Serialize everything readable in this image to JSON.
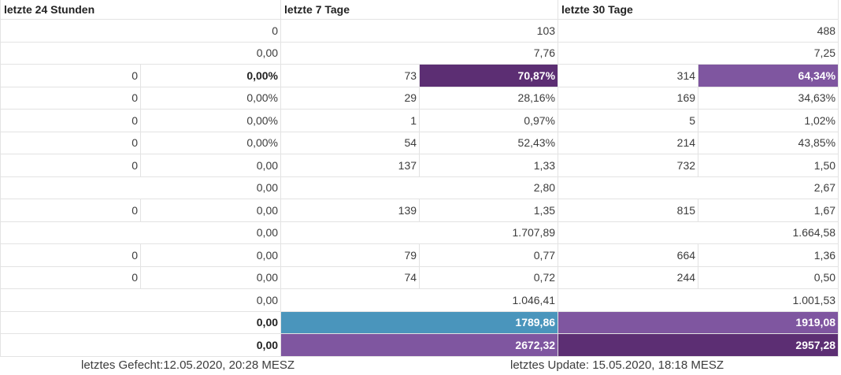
{
  "header": {
    "h24": "letzte 24 Stunden",
    "h7": "letzte 7 Tage",
    "h30": "letzte 30 Tage"
  },
  "rows": {
    "r1": {
      "d1": "0",
      "d7": "103",
      "d30": "488"
    },
    "r2": {
      "d1": "0,00",
      "d7": "7,76",
      "d30": "7,25"
    },
    "r3": {
      "d1a": "0",
      "d1b": "0,00%",
      "d7a": "73",
      "d7b": "70,87%",
      "d30a": "314",
      "d30b": "64,34%"
    },
    "r4": {
      "d1a": "0",
      "d1b": "0,00%",
      "d7a": "29",
      "d7b": "28,16%",
      "d30a": "169",
      "d30b": "34,63%"
    },
    "r5": {
      "d1a": "0",
      "d1b": "0,00%",
      "d7a": "1",
      "d7b": "0,97%",
      "d30a": "5",
      "d30b": "1,02%"
    },
    "r6": {
      "d1a": "0",
      "d1b": "0,00%",
      "d7a": "54",
      "d7b": "52,43%",
      "d30a": "214",
      "d30b": "43,85%"
    },
    "r7": {
      "d1a": "0",
      "d1b": "0,00",
      "d7a": "137",
      "d7b": "1,33",
      "d30a": "732",
      "d30b": "1,50"
    },
    "r8": {
      "d1": "0,00",
      "d7": "2,80",
      "d30": "2,67"
    },
    "r9": {
      "d1a": "0",
      "d1b": "0,00",
      "d7a": "139",
      "d7b": "1,35",
      "d30a": "815",
      "d30b": "1,67"
    },
    "r10": {
      "d1": "0,00",
      "d7": "1.707,89",
      "d30": "1.664,58"
    },
    "r11": {
      "d1a": "0",
      "d1b": "0,00",
      "d7a": "79",
      "d7b": "0,77",
      "d30a": "664",
      "d30b": "1,36"
    },
    "r12": {
      "d1a": "0",
      "d1b": "0,00",
      "d7a": "74",
      "d7b": "0,72",
      "d30a": "244",
      "d30b": "0,50"
    },
    "r13": {
      "d1": "0,00",
      "d7": "1.046,41",
      "d30": "1.001,53"
    },
    "r14": {
      "d1": "0,00",
      "d7": "1789,86",
      "d30": "1919,08"
    },
    "r15": {
      "d1": "0,00",
      "d7": "2672,32",
      "d30": "2957,28"
    }
  },
  "footer": {
    "last_fetch": "letztes Gefecht:12.05.2020, 20:28 MESZ",
    "last_update": "letztes Update: 15.05.2020, 18:18 MESZ"
  },
  "colors": {
    "deep_purple": "#5c2e73",
    "mid_purple": "#7f56a0",
    "teal": "#4a95bc"
  }
}
